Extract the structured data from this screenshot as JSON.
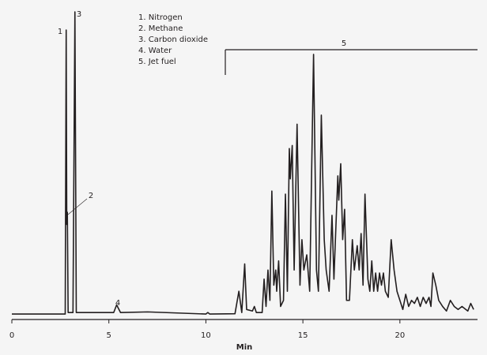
{
  "chart_data": {
    "type": "line",
    "x_label": "Min",
    "legend_items": [
      "1. Nitrogen",
      "2. Methane",
      "3. Carbon dioxide",
      "4. Water",
      "5. Jet fuel"
    ],
    "peak_labels": [
      "1",
      "2",
      "3",
      "4",
      "5"
    ],
    "xlim": [
      0,
      24
    ],
    "ylim": [
      0,
      100
    ],
    "xticks": [
      0,
      5,
      10,
      15,
      20
    ],
    "x": [
      0,
      2.75,
      2.8,
      2.83,
      2.86,
      2.9,
      3.15,
      3.25,
      3.32,
      5.25,
      5.4,
      5.6,
      7,
      10.0,
      10.1,
      10.2,
      11.5,
      11.7,
      11.85,
      12.0,
      12.1,
      12.4,
      12.5,
      12.6,
      12.9,
      13.0,
      13.1,
      13.2,
      13.3,
      13.4,
      13.5,
      13.6,
      13.65,
      13.75,
      13.85,
      14.0,
      14.1,
      14.2,
      14.3,
      14.35,
      14.45,
      14.55,
      14.7,
      14.85,
      14.95,
      15.05,
      15.2,
      15.35,
      15.55,
      15.7,
      15.8,
      15.95,
      16.1,
      16.2,
      16.35,
      16.5,
      16.6,
      16.8,
      16.85,
      16.95,
      17.05,
      17.15,
      17.25,
      17.4,
      17.55,
      17.65,
      17.8,
      17.9,
      18.0,
      18.1,
      18.2,
      18.35,
      18.45,
      18.55,
      18.65,
      18.75,
      18.85,
      18.95,
      19.05,
      19.15,
      19.25,
      19.4,
      19.55,
      19.7,
      19.85,
      20.0,
      20.15,
      20.3,
      20.45,
      20.6,
      20.75,
      20.9,
      21.05,
      21.2,
      21.35,
      21.5,
      21.6,
      21.7,
      21.85,
      22.0,
      22.2,
      22.4,
      22.6,
      22.8,
      23.0,
      23.2,
      23.5,
      23.65,
      23.8
    ],
    "series": [
      {
        "color": "#231f20",
        "values": [
          0.5,
          0.5,
          94,
          30,
          34,
          1,
          1,
          100,
          1,
          1,
          3.5,
          1,
          1.2,
          0.5,
          1,
          0.5,
          0.6,
          8,
          1,
          17,
          2,
          1.5,
          3,
          1,
          1,
          12,
          3,
          15,
          5,
          41,
          10,
          15,
          8,
          18,
          3,
          5,
          40,
          8,
          55,
          45,
          56,
          15,
          63,
          10,
          25,
          15,
          20,
          8,
          86,
          15,
          8,
          66,
          25,
          15,
          8,
          33,
          12,
          46,
          38,
          50,
          25,
          35,
          5,
          5,
          25,
          15,
          23,
          15,
          27,
          10,
          40,
          12,
          8,
          18,
          8,
          14,
          8,
          14,
          10,
          14,
          8,
          6,
          25,
          15,
          8,
          5,
          2,
          7,
          3,
          5,
          4,
          6,
          3,
          6,
          4,
          6,
          3,
          14,
          10,
          5,
          3,
          1.5,
          5,
          3,
          2,
          3,
          1.5,
          4,
          2
        ]
      }
    ]
  }
}
